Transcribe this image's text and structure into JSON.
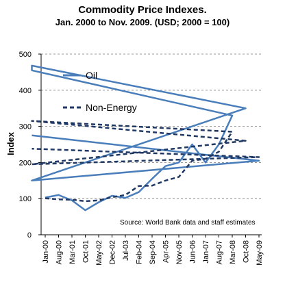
{
  "chart_data": {
    "type": "line",
    "title": "Commodity Price Indexes.",
    "subtitle": "Jan. 2000 to Nov. 2009. (USD; 2000 = 100)",
    "xlabel": "",
    "ylabel": "Index",
    "ylim": [
      0,
      500
    ],
    "yticks": [
      "0",
      "100",
      "200",
      "300",
      "400",
      "500"
    ],
    "grid": "horizontal dashed",
    "legend_position": "top-left",
    "source_note": "Source: World Bank data and staff estimates",
    "xtick_labels": [
      "Jan-00",
      "Aug-00",
      "Mar-01",
      "Oct-01",
      "May-02",
      "Dec-02",
      "Jul-03",
      "Feb-04",
      "Sep-04",
      "Apr-05",
      "Nov-05",
      "Jun-06",
      "Jan-07",
      "Aug-07",
      "Mar-08",
      "Oct-08",
      "May-09"
    ],
    "series": [
      {
        "name": "Oil",
        "color": "#4a7ebb",
        "style": "solid",
        "x": [
          "Jan-00",
          "Aug-00",
          "Mar-01",
          "Oct-01",
          "May-02",
          "Dec-02",
          "Jul-03",
          "Feb-04",
          "Sep-04",
          "Apr-05",
          "Nov-05",
          "Jun-06",
          "Jan-07",
          "Aug-07",
          "Mar-08",
          "Jun-08",
          "Jul-08",
          "Oct-08",
          "Dec-08",
          "May-09",
          "Nov-09"
        ],
        "values": [
          103,
          110,
          95,
          68,
          90,
          108,
          102,
          118,
          155,
          190,
          200,
          250,
          200,
          250,
          330,
          455,
          468,
          350,
          150,
          205,
          275
        ]
      },
      {
        "name": "Non-Energy",
        "color": "#1f3864",
        "style": "dashed",
        "x": [
          "Jan-00",
          "Aug-00",
          "Mar-01",
          "Oct-01",
          "May-02",
          "Dec-02",
          "Jul-03",
          "Feb-04",
          "Sep-04",
          "Apr-05",
          "Nov-05",
          "Jun-06",
          "Jan-07",
          "Aug-07",
          "Mar-08",
          "Jul-08",
          "Oct-08",
          "Dec-08",
          "May-09",
          "Nov-09"
        ],
        "values": [
          101,
          98,
          97,
          93,
          95,
          104,
          110,
          135,
          136,
          150,
          160,
          205,
          210,
          230,
          285,
          315,
          260,
          195,
          215,
          238
        ]
      }
    ]
  }
}
